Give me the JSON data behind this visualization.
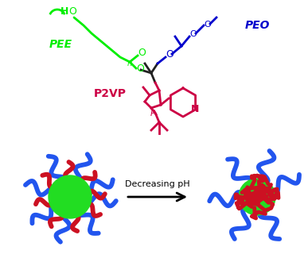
{
  "background_color": "#ffffff",
  "green": "#00ee00",
  "blue": "#0000cc",
  "red": "#cc0044",
  "black": "#000000",
  "dark_gray": "#222222",
  "pee_label": "PEE",
  "peo_label": "PEO",
  "p2vp_label": "P2VP",
  "arrow_label": "Decreasing pH",
  "core_green": "#22dd22",
  "arm_blue": "#2255ee",
  "arm_red": "#cc1122",
  "figsize": [
    3.87,
    3.3
  ],
  "dpi": 100
}
